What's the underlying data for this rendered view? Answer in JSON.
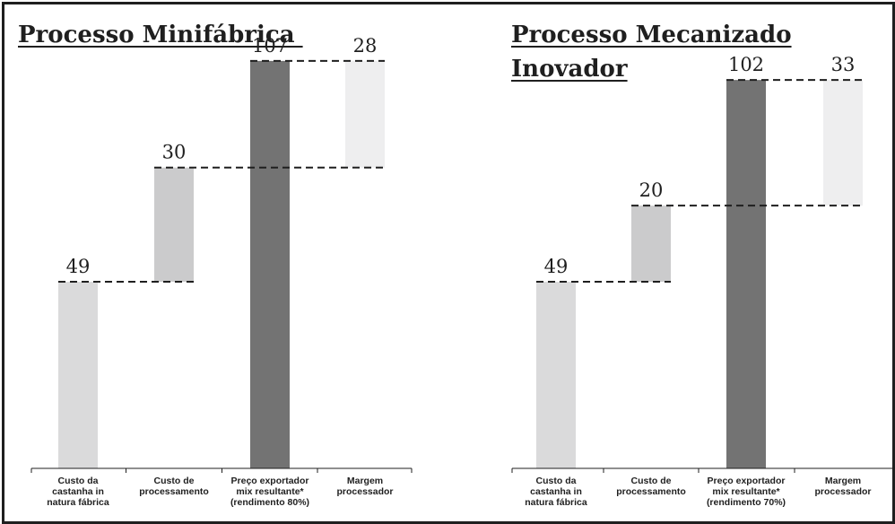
{
  "chart_data": [
    {
      "type": "bar",
      "title": "Processo Minifábrica",
      "title_lines": [
        "Processo Minifábrica "
      ],
      "categories": [
        [
          "Custo da",
          "castanha in",
          "natura fábrica"
        ],
        [
          "Custo de",
          "processamento"
        ],
        [
          "Preço exportador",
          "mix resultante*",
          "(rendimento 80%)"
        ],
        [
          "Margem",
          "processador"
        ]
      ],
      "values": [
        49,
        30,
        107,
        28
      ],
      "bar_start": [
        0,
        49,
        0,
        79
      ],
      "bar_end": [
        49,
        79,
        107,
        107
      ],
      "colors": [
        "#dadadb",
        "#cbcbcc",
        "#737373",
        "#eeeeef"
      ],
      "connector_levels": [
        49,
        79,
        107
      ],
      "ylim": [
        0,
        123
      ],
      "grid": false
    },
    {
      "type": "bar",
      "title": "Processo Mecanizado Inovador",
      "title_lines": [
        "Processo Mecanizado",
        "Inovador"
      ],
      "categories": [
        [
          "Custo da",
          "castanha in",
          "natura fábrica"
        ],
        [
          "Custo de",
          "processamento"
        ],
        [
          "Preço exportador",
          "mix resultante*",
          "(rendimento 70%)"
        ],
        [
          "Margem",
          "processador"
        ]
      ],
      "values": [
        49,
        20,
        102,
        33
      ],
      "bar_start": [
        0,
        49,
        0,
        69
      ],
      "bar_end": [
        49,
        69,
        102,
        102
      ],
      "colors": [
        "#dadadb",
        "#cbcbcc",
        "#737373",
        "#eeeeef"
      ],
      "connector_levels": [
        49,
        69,
        102
      ],
      "ylim": [
        0,
        123
      ],
      "grid": false
    }
  ]
}
